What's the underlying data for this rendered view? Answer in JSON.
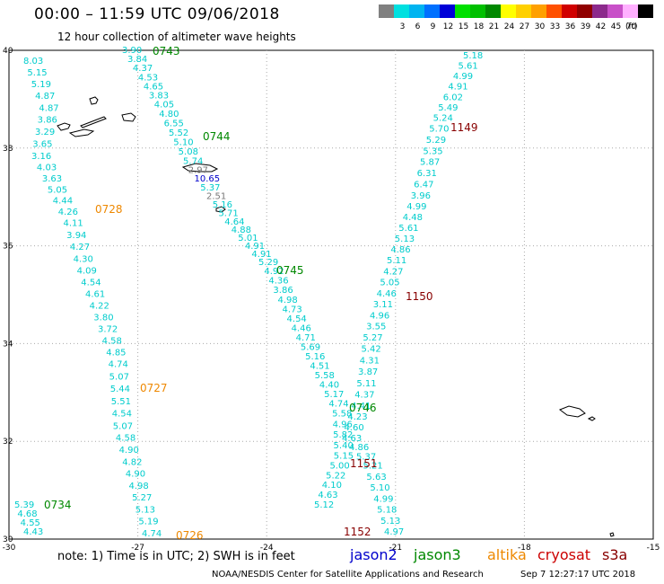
{
  "header": {
    "title": "00:00  –  11:59 UTC 09/06/2018",
    "subtitle": "12 hour collection of altimeter wave heights"
  },
  "legend": {
    "unit_label": "(ft)",
    "items": [
      {
        "label": "",
        "color": "#808080"
      },
      {
        "label": "3",
        "color": "#00e0e0"
      },
      {
        "label": "6",
        "color": "#00b4f0"
      },
      {
        "label": "9",
        "color": "#0070ff"
      },
      {
        "label": "12",
        "color": "#0000d8"
      },
      {
        "label": "15",
        "color": "#00e000"
      },
      {
        "label": "18",
        "color": "#00c000"
      },
      {
        "label": "21",
        "color": "#008800"
      },
      {
        "label": "24",
        "color": "#ffff00"
      },
      {
        "label": "27",
        "color": "#ffd000"
      },
      {
        "label": "30",
        "color": "#ffa000"
      },
      {
        "label": "33",
        "color": "#ff5000"
      },
      {
        "label": "36",
        "color": "#d00000"
      },
      {
        "label": "39",
        "color": "#900000"
      },
      {
        "label": "42",
        "color": "#8c2a8c"
      },
      {
        "label": "45",
        "color": "#c850c8"
      },
      {
        "label": "70",
        "color": "#ffb0ff"
      },
      {
        "label": "",
        "color": "#000000"
      }
    ]
  },
  "axes": {
    "lon_labels": [
      "-30",
      "-27",
      "-24",
      "-21",
      "-18",
      "-15"
    ],
    "lat_labels": [
      "40",
      "38",
      "36",
      "34",
      "32",
      "30"
    ],
    "lon_range": [
      -30,
      -15
    ],
    "lat_range": [
      30,
      40
    ]
  },
  "colors": {
    "obs": "#00cccc",
    "obs_gray": "#777777",
    "obs_blue": "#0000cc",
    "jason3_label": "#008800",
    "altika_label": "#ee8800",
    "cryosat_label": "#880000",
    "grid": "#aaaaaa"
  },
  "passes": [
    {
      "label": "0743",
      "color": "#008800"
    },
    {
      "label": "0744",
      "color": "#008800"
    },
    {
      "label": "0745",
      "color": "#008800"
    },
    {
      "label": "0746",
      "color": "#008800"
    },
    {
      "label": "0728",
      "color": "#ee8800"
    },
    {
      "label": "0727",
      "color": "#ee8800"
    },
    {
      "label": "0726",
      "color": "#ee8800"
    },
    {
      "label": "0734",
      "color": "#008800"
    },
    {
      "label": "1149",
      "color": "#880000"
    },
    {
      "label": "1150",
      "color": "#880000"
    },
    {
      "label": "1151",
      "color": "#880000"
    },
    {
      "label": "1152",
      "color": "#880000"
    }
  ],
  "tracks": {
    "A": [
      "8.03",
      "5.15",
      "5.19",
      "4.87",
      "4.87",
      "3.86",
      "3.29",
      "3.65",
      "3.16",
      "4.03",
      "3.63",
      "5.05",
      "4.44",
      "4.26",
      "4.11",
      "3.94",
      "4.27",
      "4.30",
      "4.09",
      "4.54",
      "4.61",
      "4.22",
      "3.80",
      "3.72",
      "4.58",
      "4.85",
      "4.74",
      "5.07",
      "5.44",
      "5.51",
      "4.54",
      "5.07",
      "4.58",
      "4.90",
      "4.82",
      "4.90",
      "4.98",
      "5.27",
      "5.13",
      "5.19",
      "4.74"
    ],
    "A2": [
      "5.39",
      "4.68",
      "4.55",
      "4.43"
    ],
    "B": [
      "3.90",
      "3.84",
      "4.37",
      "4.53",
      "4.65",
      "3.83",
      "4.05",
      "4.80",
      "6.55",
      "5.52",
      "5.10",
      "5.08",
      "5.74",
      "2.97",
      "10.65",
      "5.37",
      "2.51",
      "5.16",
      "5.71",
      "4.64",
      "4.88",
      "5.01",
      "4.91",
      "4.91",
      "5.29",
      "4.92",
      "4.36",
      "3.86",
      "4.98",
      "4.73",
      "4.54",
      "4.46",
      "4.71",
      "5.69",
      "5.16",
      "4.51",
      "5.58",
      "4.40",
      "5.17",
      "4.74",
      "5.58",
      "4.96",
      "5.82",
      "5.40",
      "5.15",
      "5.00",
      "5.22",
      "4.10",
      "4.63",
      "5.12"
    ],
    "C": [
      "5.18",
      "5.61",
      "4.99",
      "4.91",
      "6.02",
      "5.49",
      "5.24",
      "5.70",
      "5.29",
      "5.35",
      "5.87",
      "6.31",
      "6.47",
      "3.96",
      "4.99",
      "4.48",
      "5.61",
      "5.13",
      "4.86",
      "5.11",
      "4.27",
      "5.05",
      "4.46",
      "3.11",
      "4.96",
      "3.55",
      "5.27",
      "5.42",
      "4.31",
      "3.87",
      "5.11",
      "4.37",
      "4.41",
      "4.23",
      "4.60",
      "4.63",
      "4.86",
      "5.37",
      "5.21",
      "5.63",
      "5.10",
      "4.99",
      "5.18",
      "5.13",
      "4.97"
    ]
  },
  "notes": {
    "note": "note:  1) Time is in UTC;  2) SWH is in feet",
    "credit": "NOAA/NESDIS Center for Satellite Applications and Research",
    "timestamp": "Sep  7 12:27:17 UTC 2018"
  },
  "missions": [
    {
      "name": "jason2",
      "color": "#0000cc"
    },
    {
      "name": "jason3",
      "color": "#008800"
    },
    {
      "name": "altika",
      "color": "#ee8800"
    },
    {
      "name": "cryosat",
      "color": "#cc0000"
    },
    {
      "name": "s3a",
      "color": "#880000"
    }
  ]
}
